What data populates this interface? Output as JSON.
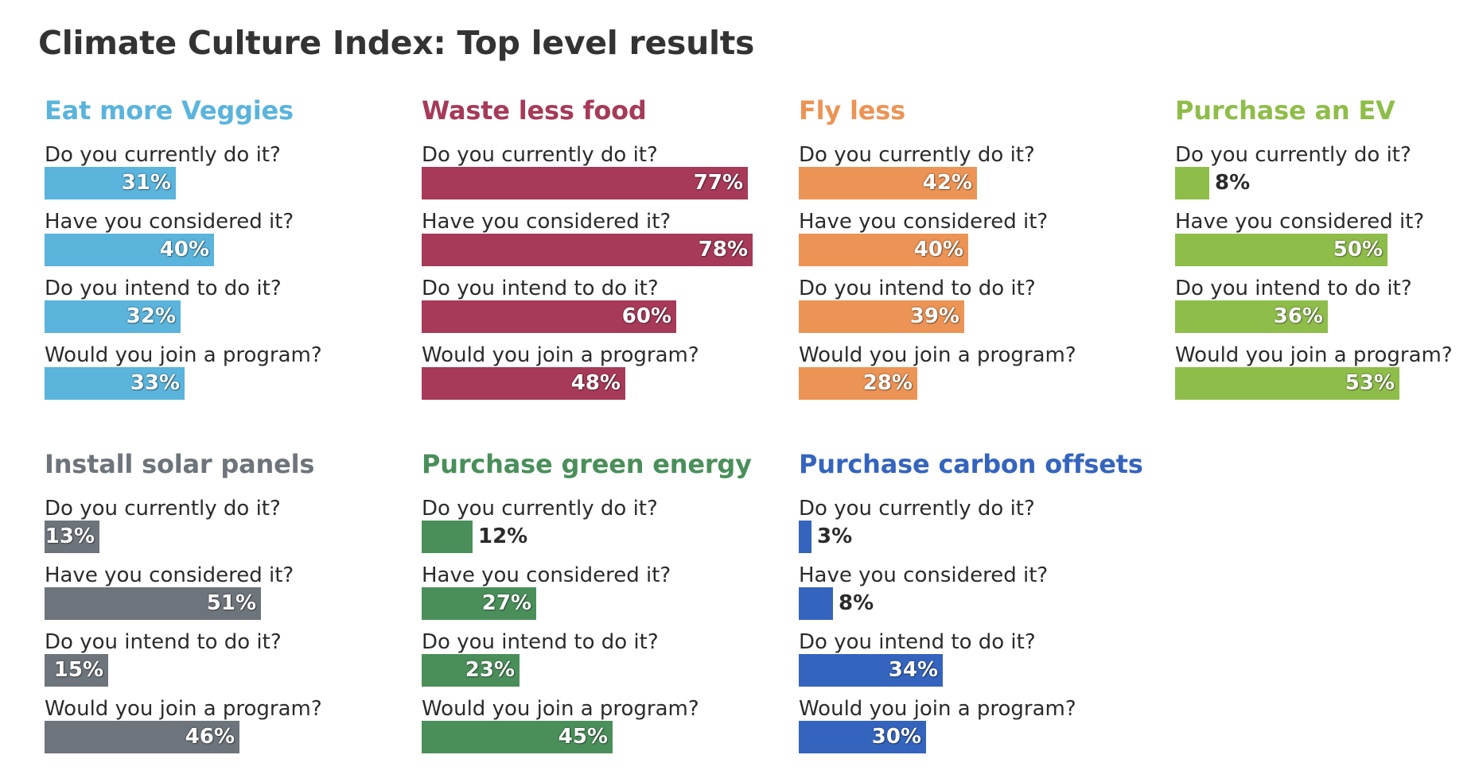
{
  "title": "Climate Culture Index: Top level results",
  "questions": [
    "Do you currently do it?",
    "Have you considered it?",
    "Do you intend to do it?",
    "Would you join a program?"
  ],
  "chart_data": [
    {
      "type": "bar",
      "title": "Eat more Veggies",
      "color": "#5ab4dc",
      "categories": [
        "Do you currently do it?",
        "Have you considered it?",
        "Do you intend to do it?",
        "Would you join a program?"
      ],
      "values": [
        31,
        40,
        32,
        33
      ],
      "labels": [
        "31%",
        "40%",
        "32%",
        "33%"
      ],
      "xlim": [
        0,
        100
      ]
    },
    {
      "type": "bar",
      "title": "Waste less food",
      "color": "#a63a58",
      "categories": [
        "Do you currently do it?",
        "Have you considered it?",
        "Do you intend to do it?",
        "Would you join a program?"
      ],
      "values": [
        77,
        78,
        60,
        48
      ],
      "labels": [
        "77%",
        "78%",
        "60%",
        "48%"
      ],
      "xlim": [
        0,
        100
      ]
    },
    {
      "type": "bar",
      "title": "Fly less",
      "color": "#ec9455",
      "categories": [
        "Do you currently do it?",
        "Have you considered it?",
        "Do you intend to do it?",
        "Would you join a program?"
      ],
      "values": [
        42,
        40,
        39,
        28
      ],
      "labels": [
        "42%",
        "40%",
        "39%",
        "28%"
      ],
      "xlim": [
        0,
        100
      ]
    },
    {
      "type": "bar",
      "title": "Purchase an EV",
      "color": "#8fbd4a",
      "categories": [
        "Do you currently do it?",
        "Have you considered it?",
        "Do you intend to do it?",
        "Would you join a program?"
      ],
      "values": [
        8,
        50,
        36,
        53
      ],
      "labels": [
        "8%",
        "50%",
        "36%",
        "53%"
      ],
      "xlim": [
        0,
        100
      ]
    },
    {
      "type": "bar",
      "title": "Install solar panels",
      "color": "#6d747b",
      "categories": [
        "Do you currently do it?",
        "Have you considered it?",
        "Do you intend to do it?",
        "Would you join a program?"
      ],
      "values": [
        13,
        51,
        15,
        46
      ],
      "labels": [
        "13%",
        "51%",
        "15%",
        "46%"
      ],
      "xlim": [
        0,
        100
      ]
    },
    {
      "type": "bar",
      "title": "Purchase green energy",
      "color": "#4a8f5a",
      "categories": [
        "Do you currently do it?",
        "Have you considered it?",
        "Do you intend to do it?",
        "Would you join a program?"
      ],
      "values": [
        12,
        27,
        23,
        45
      ],
      "labels": [
        "12%",
        "27%",
        "23%",
        "45%"
      ],
      "xlim": [
        0,
        100
      ]
    },
    {
      "type": "bar",
      "title": "Purchase carbon offsets",
      "color": "#3564be",
      "categories": [
        "Do you currently do it?",
        "Have you considered it?",
        "Do you intend to do it?",
        "Would you join a program?"
      ],
      "values": [
        3,
        8,
        34,
        30
      ],
      "labels": [
        "3%",
        "8%",
        "34%",
        "30%"
      ],
      "xlim": [
        0,
        100
      ]
    }
  ]
}
